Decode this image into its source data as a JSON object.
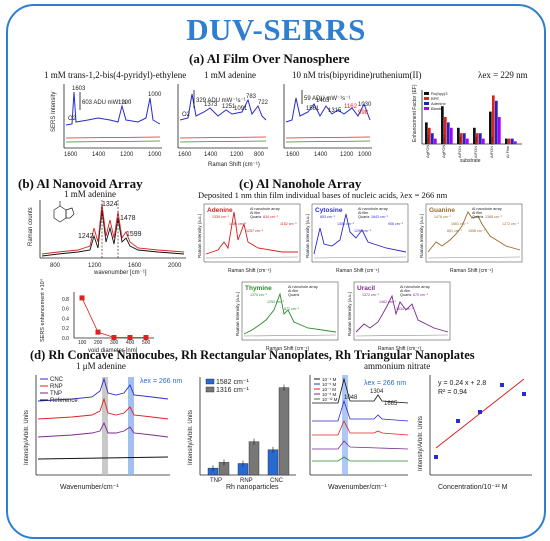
{
  "title": "DUV-SERRS",
  "sections": {
    "a": "(a) Al Film Over Nanosphere",
    "b": "(b) Al Nanovoid Array",
    "c": "(c) Al Nanohole Array",
    "d": "(d) Rh Concave Nanocubes, Rh Rectangular Nanoplates, Rh Triangular Nanoplates"
  },
  "panel_a": {
    "labels": [
      "1 mM trans-1,2-bis(4-pyridyl)-ethylene",
      "1 mM adenine",
      "10 nM tris(bipyridine)ruthenium(II)",
      "λex = 229 nm"
    ],
    "ylabel": "SERS Intensity",
    "xlabel": "Raman Shift (cm⁻¹)",
    "scale1": "603 ADU mW⁻¹s⁻¹",
    "scale2": "329 ADU mW⁻¹s⁻¹",
    "scale3": "59 ADU mW⁻¹s⁻¹",
    "peaks1": [
      "1603",
      "1200",
      "1000"
    ],
    "peaks2": [
      "1373",
      "1251",
      "1091",
      "783",
      "722"
    ],
    "peaks3": [
      "1598",
      "1561",
      "1403",
      "1315",
      "1268",
      "1162",
      "1030",
      "998"
    ],
    "o2": "O2",
    "xticks": [
      "1600",
      "1400",
      "1200",
      "1000",
      "800"
    ],
    "bar_chart": {
      "ylabel": "Enhancement Factor (EF)",
      "xlabel": "substrate",
      "categories": [
        "AgFON (mb)",
        "AgFON (mb)",
        "AlFON (mb)",
        "AlFON (mb)",
        "AlFON (mb)",
        "Al Film"
      ],
      "legend": [
        "Ru(bpy)3",
        "BPE",
        "Adenine",
        "Blank"
      ],
      "colors": [
        "#111111",
        "#d22",
        "#22c",
        "#a0f"
      ]
    }
  },
  "panel_b": {
    "label": "1 mM adenine",
    "ylabel": "Raman counts",
    "xlabel": "wavenumber [cm⁻¹]",
    "peaks": [
      "1324",
      "1478",
      "1242",
      "1599"
    ],
    "xticks": [
      "800",
      "1200",
      "1600",
      "2000"
    ],
    "enh": {
      "ylabel": "SERS enhancement ×10⁴",
      "xlabel": "void diameter [nm]",
      "xticks": [
        "100",
        "200",
        "300",
        "400",
        "500"
      ],
      "yticks": [
        "0.0",
        "0.2",
        "0.4",
        "0.6",
        "0.8"
      ]
    }
  },
  "panel_c": {
    "subtitle": "Deposited 1 nm thin film individual bases of nucleic acids, λex = 266 nm",
    "ylabel": "Raman Intensity (a.u.)",
    "xlabel": "Raman Shift (cm⁻¹)",
    "legend": [
      "Al nanohole array",
      "Al film",
      "Quartz"
    ],
    "plots": [
      {
        "name": "Adenine",
        "color": "#d61c1c",
        "peaks": [
          "1339 cm⁻¹",
          "1486 cm⁻¹",
          "1257 cm⁻¹",
          "834 cm⁻¹",
          "1182 cm⁻¹"
        ]
      },
      {
        "name": "Cytosine",
        "color": "#2c2cd0",
        "peaks": [
          "853 cm⁻¹",
          "1306 cm⁻¹",
          "1299 cm⁻¹",
          "1643 cm⁻¹",
          "906 cm⁻¹"
        ]
      },
      {
        "name": "Guanine",
        "color": "#9a6a2a",
        "peaks": [
          "1476 cm⁻¹",
          "1561 cm⁻¹",
          "1558 cm⁻¹",
          "1388 cm⁻¹",
          "1272 cm⁻¹",
          "851 cm⁻¹"
        ]
      },
      {
        "name": "Thymine",
        "color": "#2a8a2a",
        "peaks": [
          "1370 cm⁻¹",
          "1253 cm⁻¹",
          "872 cm⁻¹"
        ]
      },
      {
        "name": "Uracil",
        "color": "#7a2a8a",
        "peaks": [
          "1372 cm⁻¹",
          "1462 cm⁻¹",
          "1634 cm⁻¹",
          "670 cm⁻¹"
        ]
      }
    ]
  },
  "panel_d": {
    "label1": "1 μM adenine",
    "label2": "ammonium nitrate",
    "lambda": "λex = 266 nm",
    "legend1": [
      "CNC",
      "RNP",
      "TNP",
      "Reference"
    ],
    "ylabel": "Intensity/Arbitr. Units",
    "xlabel": "Wavenumber/cm⁻¹",
    "bar": {
      "legend": [
        "1582 cm⁻¹",
        "1316 cm⁻¹"
      ],
      "categories": [
        "TNP",
        "RNP",
        "CNC"
      ],
      "xlabel": "Rh nanoparticles"
    },
    "conc": [
      "10⁻⁴ M",
      "10⁻⁵ M",
      "10⁻⁷ M",
      "10⁻⁸ M",
      "10⁻¹² M"
    ],
    "peaks3": [
      "1048",
      "1304",
      "1665"
    ],
    "fit": {
      "eq": "y = 0.24 x + 2.8",
      "r2": "R² = 0.94",
      "xlabel": "Concentration/10⁻¹² M",
      "ylabel": "Intensity/Arbitr. Units"
    }
  },
  "chart_data": [
    {
      "type": "bar",
      "title": "",
      "xlabel": "substrate",
      "ylabel": "Enhancement Factor (EF)",
      "categories": [
        "AgFON",
        "AgFON",
        "AlFON",
        "AlFON",
        "AlFON",
        "Al film"
      ],
      "series": [
        {
          "name": "Ru(bpy)3",
          "values": [
            4,
            7,
            3,
            3,
            6,
            1
          ]
        },
        {
          "name": "BPE",
          "values": [
            3,
            5,
            2,
            2,
            9,
            1
          ]
        },
        {
          "name": "Adenine",
          "values": [
            2,
            4,
            2,
            2,
            8,
            1
          ]
        },
        {
          "name": "Blank",
          "values": [
            1,
            3,
            1,
            1,
            5,
            0.5
          ]
        }
      ]
    },
    {
      "type": "scatter",
      "xlabel": "void diameter [nm]",
      "ylabel": "SERS enhancement ×10⁴",
      "x": [
        100,
        200,
        300,
        400,
        500
      ],
      "y": [
        0.82,
        0.12,
        0.01,
        0.01,
        0.01
      ],
      "ylim": [
        0,
        0.9
      ]
    },
    {
      "type": "bar",
      "xlabel": "Rh nanoparticles",
      "ylabel": "Intensity/Arbitr. Units",
      "categories": [
        "TNP",
        "RNP",
        "CNC"
      ],
      "series": [
        {
          "name": "1582 cm⁻¹",
          "values": [
            0.6,
            1.0,
            2.2
          ]
        },
        {
          "name": "1316 cm⁻¹",
          "values": [
            1.1,
            2.9,
            7.6
          ]
        }
      ]
    },
    {
      "type": "scatter",
      "xlabel": "Concentration/10⁻¹² M",
      "ylabel": "Intensity/Arbitr. Units",
      "x": [
        1,
        10,
        100,
        1000,
        10000
      ],
      "y": [
        1.8,
        3.0,
        3.3,
        4.2,
        3.9
      ]
    }
  ]
}
